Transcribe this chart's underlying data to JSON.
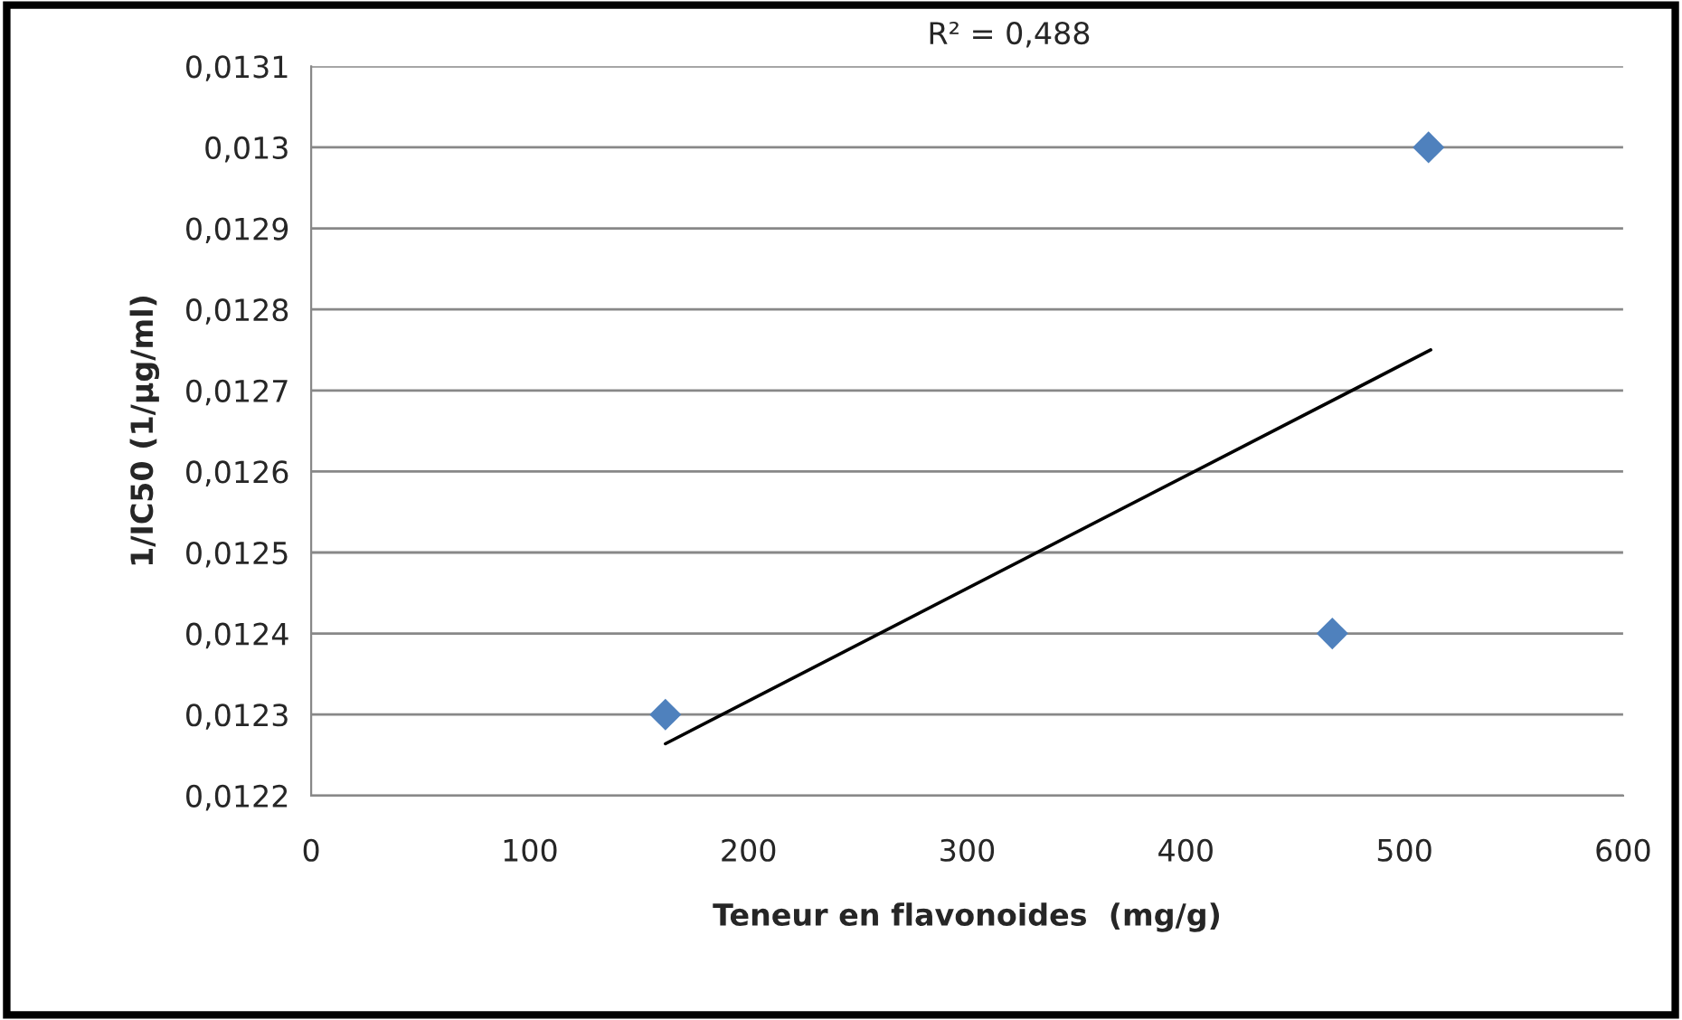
{
  "chart_data": {
    "type": "scatter",
    "xlabel": "Teneur en flavonoides  (mg/g)",
    "ylabel": "1/IC50 (1/µg/ml)",
    "annotations": [
      "R² = 0,488"
    ],
    "xlim": [
      0,
      600
    ],
    "xticks": [
      0,
      100,
      200,
      300,
      400,
      500,
      600
    ],
    "ylim": [
      0.0122,
      0.0131
    ],
    "yticks": [
      {
        "value": 0.0122,
        "label": "0,0122"
      },
      {
        "value": 0.0123,
        "label": "0,0123"
      },
      {
        "value": 0.0124,
        "label": "0,0124"
      },
      {
        "value": 0.0125,
        "label": "0,0125"
      },
      {
        "value": 0.0126,
        "label": "0,0126"
      },
      {
        "value": 0.0127,
        "label": "0,0127"
      },
      {
        "value": 0.0128,
        "label": "0,0128"
      },
      {
        "value": 0.0129,
        "label": "0,0129"
      },
      {
        "value": 0.013,
        "label": "0,013"
      },
      {
        "value": 0.0131,
        "label": "0,0131"
      }
    ],
    "grid": "y",
    "marker": "diamond",
    "series": [
      {
        "color": "#4f81bd",
        "x": [
          162,
          467,
          511
        ],
        "values": [
          0.0123,
          0.0124,
          0.013
        ]
      },
      {
        "type": "line",
        "color": "#000000",
        "marker": "none",
        "x": [
          162,
          512
        ],
        "values": [
          0.012264,
          0.01275
        ]
      }
    ]
  }
}
